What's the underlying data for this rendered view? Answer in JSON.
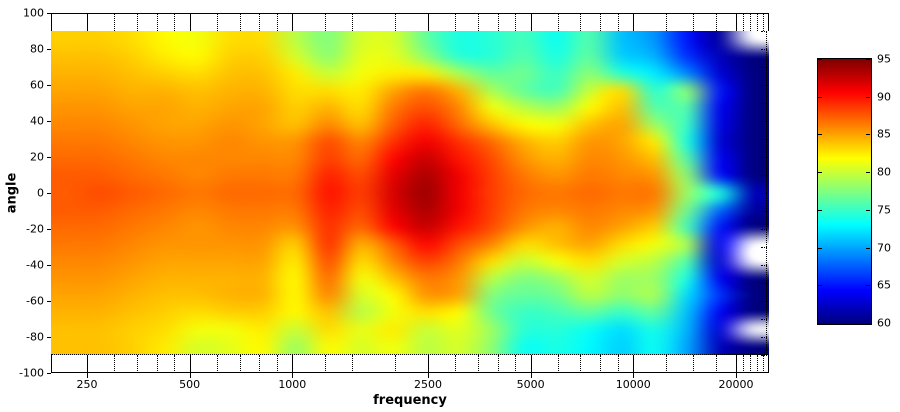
{
  "figure": {
    "background": "#ffffff",
    "x_axis": {
      "label": "frequency",
      "tick_labels": [
        "250",
        "500",
        "1000",
        "2500",
        "5000",
        "10000",
        "20000"
      ],
      "tick_values": [
        250,
        500,
        1000,
        2500,
        5000,
        10000,
        20000
      ],
      "minor_tick_values": [
        300,
        350,
        400,
        450,
        600,
        700,
        800,
        900,
        1250,
        1500,
        2000,
        3000,
        3500,
        4000,
        4500,
        6000,
        7000,
        8000,
        9000,
        12500,
        15000,
        17500,
        21000,
        22000,
        23000,
        24000
      ]
    },
    "y_axis": {
      "label": "angle",
      "tick_labels": [
        "100",
        "80",
        "60",
        "40",
        "20",
        "0",
        "-20",
        "-40",
        "-60",
        "-80",
        "-100"
      ],
      "tick_values": [
        100,
        80,
        60,
        40,
        20,
        0,
        -20,
        -40,
        -60,
        -80,
        -100
      ]
    },
    "colorbar": {
      "tick_labels": [
        "95",
        "90",
        "85",
        "80",
        "75",
        "70",
        "65",
        "60"
      ],
      "tick_values": [
        95,
        90,
        85,
        80,
        75,
        70,
        65,
        60
      ],
      "vmin": 60,
      "vmax": 95,
      "colormap": "jet",
      "top_color": "#800000",
      "bottom_color": "#000080"
    }
  },
  "chart_data": {
    "type": "heatmap",
    "title": "",
    "xlabel": "frequency",
    "ylabel": "angle",
    "x_scale": "log",
    "xlim": [
      196,
      25000
    ],
    "ylim": [
      -100,
      100
    ],
    "data_x_range": [
      200,
      24000
    ],
    "data_y_range": [
      -90,
      90
    ],
    "colormap": "jet",
    "clim": [
      60,
      95
    ],
    "legend": "colorbar right, SPL dB",
    "x": [
      200,
      250,
      315,
      400,
      500,
      630,
      800,
      1000,
      1250,
      1600,
      2000,
      2500,
      3150,
      4000,
      5000,
      6300,
      8000,
      10000,
      12500,
      16000,
      20000,
      24000
    ],
    "y": [
      90,
      80,
      70,
      60,
      50,
      40,
      30,
      20,
      10,
      0,
      -10,
      -20,
      -30,
      -40,
      -50,
      -60,
      -70,
      -80,
      -90
    ],
    "values": [
      [
        83.5,
        83.5,
        83,
        82,
        81.5,
        83,
        83,
        79.5,
        77.5,
        80.5,
        80.5,
        76.5,
        74,
        74.5,
        75.5,
        73.5,
        76,
        71,
        69.5,
        65,
        61,
        null
      ],
      [
        84,
        84,
        83.5,
        82.5,
        82,
        83.5,
        83.5,
        80.5,
        78,
        81,
        81,
        78,
        74.5,
        74.5,
        76,
        74,
        76.5,
        71.5,
        70.5,
        66,
        62,
        60
      ],
      [
        84.5,
        84.5,
        84,
        83.5,
        83,
        84,
        84,
        82.5,
        80,
        81.5,
        82.5,
        82.5,
        79,
        76.5,
        77,
        75,
        78,
        74.5,
        72.5,
        69,
        63,
        60
      ],
      [
        85,
        85,
        84.5,
        84.5,
        84,
        84.5,
        84.5,
        83,
        83,
        82.5,
        85,
        86.5,
        84.5,
        79,
        76.5,
        75.5,
        80,
        83,
        74.5,
        78,
        65,
        60
      ],
      [
        85.5,
        85.5,
        85,
        85,
        84.5,
        85,
        85,
        83.5,
        84.5,
        83,
        86.5,
        88,
        86,
        81.5,
        79.5,
        78.5,
        82,
        84,
        76,
        76,
        64,
        60
      ],
      [
        86,
        86,
        85.5,
        85,
        85,
        85.5,
        85,
        84,
        86,
        84,
        87.5,
        89.5,
        87,
        84,
        82,
        81.5,
        84,
        85,
        78.5,
        75,
        63.5,
        60
      ],
      [
        86.5,
        86.5,
        86,
        85.5,
        85.5,
        86,
        85.5,
        85.5,
        88,
        86,
        89,
        91,
        89,
        87,
        84.5,
        83.5,
        85.5,
        85,
        82.5,
        74,
        63,
        60
      ],
      [
        87,
        87,
        86.5,
        86,
        86,
        86,
        86,
        86,
        88.5,
        87,
        90.5,
        92.5,
        90,
        88,
        85.5,
        84.5,
        86,
        85.5,
        84,
        76,
        64,
        60
      ],
      [
        87.5,
        87.5,
        87,
        86.5,
        86,
        86.5,
        86.5,
        86.5,
        89.5,
        88,
        91.5,
        93.5,
        91,
        88.5,
        86.5,
        85.5,
        86.5,
        86,
        85.5,
        78,
        65,
        60
      ],
      [
        87.5,
        88,
        87.5,
        87,
        86.5,
        87,
        87,
        87,
        90,
        88.5,
        92,
        94,
        91,
        88.5,
        87,
        86.5,
        87,
        86.5,
        86.5,
        78.5,
        74,
        62
      ],
      [
        87.5,
        87.5,
        87,
        86.5,
        86,
        86.5,
        86.5,
        86.5,
        89.5,
        88,
        91.5,
        93.5,
        91,
        88.5,
        86.5,
        86,
        86.5,
        86,
        85.5,
        77,
        68,
        61
      ],
      [
        87,
        87,
        86.5,
        86,
        85.5,
        86,
        86,
        85.5,
        89,
        87,
        90.5,
        92.5,
        90,
        88,
        85.5,
        84.5,
        86,
        85,
        83.5,
        75.5,
        65,
        60
      ],
      [
        86.5,
        86.5,
        86,
        85.5,
        85.5,
        85.5,
        85.5,
        83.5,
        89,
        84.5,
        87.5,
        90.5,
        88,
        86,
        83,
        84,
        85,
        83,
        81.5,
        79,
        64,
        null
      ],
      [
        86,
        86,
        85.5,
        85,
        85,
        85,
        85,
        82.5,
        88,
        83,
        86,
        88.5,
        86.5,
        83,
        80,
        81.5,
        83,
        80.5,
        79.5,
        76,
        63,
        null
      ],
      [
        85.5,
        85.5,
        85,
        84.5,
        84.5,
        84.5,
        84.5,
        82,
        87,
        81.5,
        84,
        86.5,
        85.5,
        79.5,
        77.5,
        78.5,
        80.5,
        78.5,
        78.5,
        74,
        64,
        60
      ],
      [
        85,
        85,
        84.5,
        84,
        84,
        84.5,
        84.5,
        82,
        86,
        80.5,
        82,
        85.5,
        85,
        77.5,
        76.5,
        77,
        79.5,
        78,
        79,
        72,
        66,
        60
      ],
      [
        84.5,
        84.5,
        84,
        83.5,
        83,
        83.5,
        83.5,
        82,
        84,
        79.5,
        81.5,
        83,
        82,
        77,
        75,
        75.5,
        76.5,
        75,
        76.5,
        71,
        64,
        60
      ],
      [
        84,
        84,
        83.5,
        83,
        81.5,
        81.5,
        82.5,
        80,
        83,
        81,
        82.5,
        80,
        81,
        78.5,
        74.5,
        74.5,
        73.5,
        72,
        74,
        70.5,
        63,
        null
      ],
      [
        84,
        84,
        83.5,
        82.5,
        80.5,
        81,
        82,
        78.5,
        82,
        80.5,
        81.5,
        79.5,
        80.5,
        78,
        73.5,
        74,
        73,
        71.5,
        73.5,
        70,
        62,
        60
      ]
    ]
  }
}
